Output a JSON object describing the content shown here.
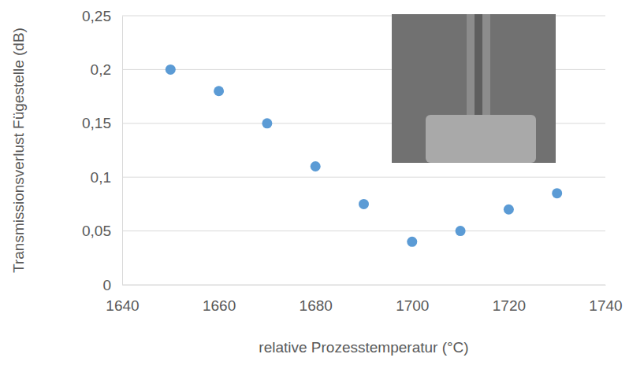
{
  "chart_data": {
    "type": "scatter",
    "x_label": "relative Prozesstemperatur (°C)",
    "y_label": "Transmissionsverlust Fügestelle (dB)",
    "x": [
      1650,
      1660,
      1670,
      1680,
      1690,
      1700,
      1710,
      1720,
      1730
    ],
    "values": [
      0.2,
      0.18,
      0.15,
      0.11,
      0.075,
      0.04,
      0.05,
      0.07,
      0.085
    ],
    "color": "#5b9bd5",
    "marker": "circle",
    "xlim": [
      1640,
      1740
    ],
    "xticks": [
      1640,
      1660,
      1680,
      1700,
      1720,
      1740
    ],
    "ylim": [
      0,
      0.25
    ],
    "yticks": [
      0,
      {
        "value": 0.05,
        "label": "0,05"
      },
      {
        "value": 0.1,
        "label": "0,1"
      },
      {
        "value": 0.15,
        "label": "0,15"
      },
      {
        "value": 0.2,
        "label": "0,2"
      },
      {
        "value": 0.25,
        "label": "0,25"
      }
    ],
    "grid": true
  }
}
